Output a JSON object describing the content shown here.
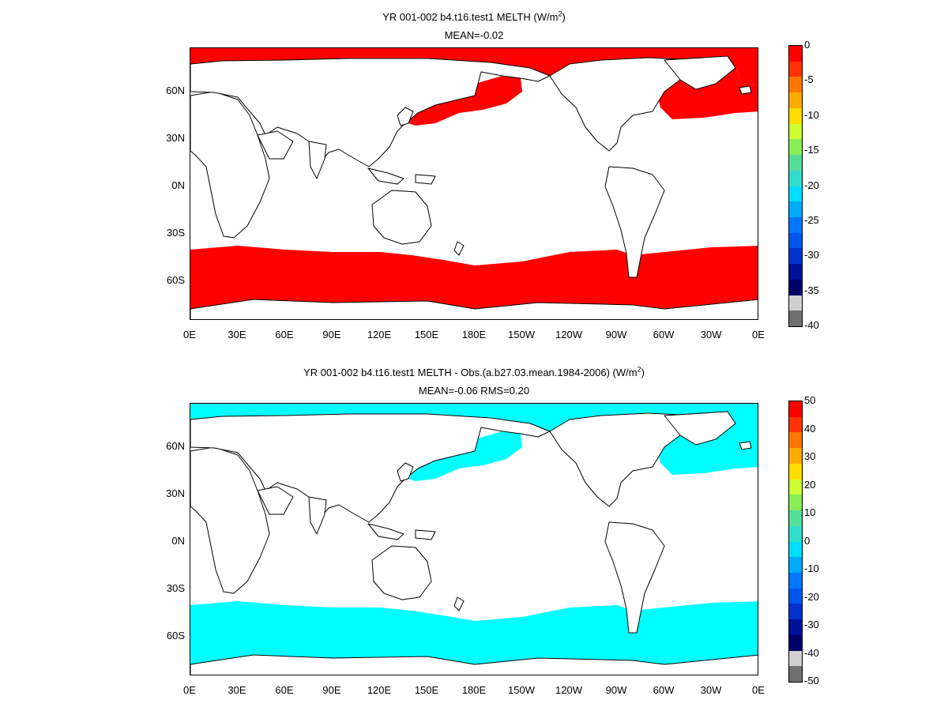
{
  "panels": [
    {
      "title": "YR 001-002 b4.t16.test1  MELTH (W/m",
      "title_sup": "2",
      "title_tail": ")",
      "subtitle": "MEAN=-0.02",
      "fill_color": "#ff0000",
      "y_ticks": [
        "60N",
        "30N",
        "0N",
        "30S",
        "60S"
      ],
      "x_ticks": [
        "0E",
        "30E",
        "60E",
        "90E",
        "120E",
        "150E",
        "180E",
        "150W",
        "120W",
        "90W",
        "60W",
        "30W",
        "0E"
      ],
      "colorbar_labels": [
        "0",
        "-5",
        "-10",
        "-15",
        "-20",
        "-25",
        "-30",
        "-35",
        "-40"
      ],
      "colorbar_colors": [
        "#ff0000",
        "#ff3300",
        "#ff7700",
        "#ffaa00",
        "#ffdd00",
        "#ccff33",
        "#88ee55",
        "#55dd99",
        "#33ddcc",
        "#00ddff",
        "#00aaff",
        "#0077ff",
        "#0055ee",
        "#0033cc",
        "#001199",
        "#000066",
        "#d0d0d0",
        "#707070"
      ]
    },
    {
      "title": "YR 001-002 b4.t16.test1 MELTH - Obs.(a.b27.03.mean.1984-2006) (W/m",
      "title_sup": "2",
      "title_tail": ")",
      "subtitle": "MEAN=-0.06 RMS=0.20",
      "fill_color": "#00ffff",
      "y_ticks": [
        "60N",
        "30N",
        "0N",
        "30S",
        "60S"
      ],
      "x_ticks": [
        "0E",
        "30E",
        "60E",
        "90E",
        "120E",
        "150E",
        "180E",
        "150W",
        "120W",
        "90W",
        "60W",
        "30W",
        "0E"
      ],
      "colorbar_labels": [
        "50",
        "40",
        "30",
        "20",
        "10",
        "0",
        "-10",
        "-20",
        "-30",
        "-40",
        "-50"
      ],
      "colorbar_colors": [
        "#ff0000",
        "#ff3300",
        "#ff7700",
        "#ffaa00",
        "#ffdd00",
        "#ccff33",
        "#88ee55",
        "#55dd99",
        "#33ddcc",
        "#00ddff",
        "#00aaff",
        "#0077ff",
        "#0055ee",
        "#0033cc",
        "#001199",
        "#000066",
        "#d0d0d0",
        "#707070"
      ]
    }
  ]
}
